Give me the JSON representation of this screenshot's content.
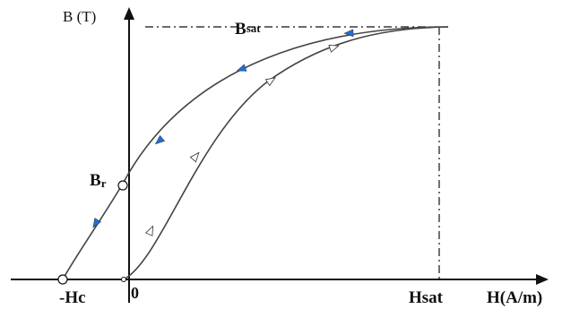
{
  "axes": {
    "y_label": "B (T)",
    "x_label": "H(A/m)"
  },
  "labels": {
    "bsat_main": "B",
    "bsat_sub": "sat",
    "br_main": "B",
    "br_sub": "r",
    "hc": "-Hc",
    "origin": "0",
    "hsat": "Hsat"
  },
  "colors": {
    "curve": "#444444",
    "axis": "#111111",
    "arrow_descending": "#1f6fd6",
    "arrow_ascending": "#ffffff"
  }
}
